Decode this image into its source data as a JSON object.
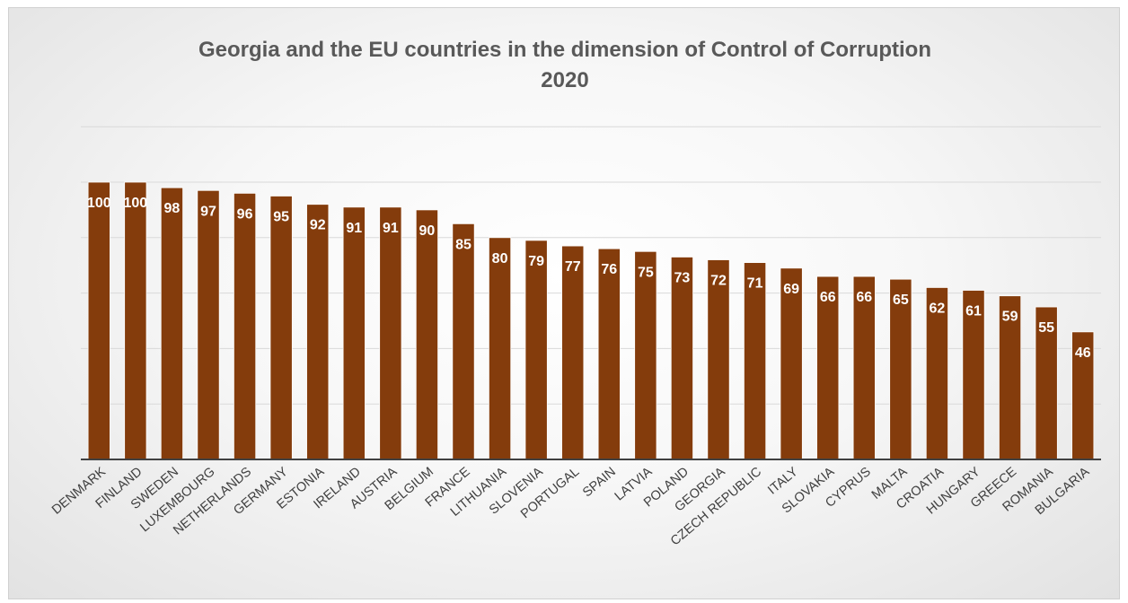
{
  "chart_data": {
    "type": "bar",
    "title": "Georgia and the EU countries in the dimension of Control of Corruption",
    "subtitle": "2020",
    "categories": [
      "DENMARK",
      "FINLAND",
      "SWEDEN",
      "LUXEMBOURG",
      "NETHERLANDS",
      "GERMANY",
      "ESTONIA",
      "IRELAND",
      "AUSTRIA",
      "BELGIUM",
      "FRANCE",
      "LITHUANIA",
      "SLOVENIA",
      "PORTUGAL",
      "SPAIN",
      "LATVIA",
      "POLAND",
      "GEORGIA",
      "CZECH REPUBLIC",
      "ITALY",
      "SLOVAKIA",
      "CYPRUS",
      "MALTA",
      "CROATIA",
      "HUNGARY",
      "GREECE",
      "ROMANIA",
      "BULGARIA"
    ],
    "values": [
      100,
      100,
      98,
      97,
      96,
      95,
      92,
      91,
      91,
      90,
      85,
      80,
      79,
      77,
      76,
      75,
      73,
      72,
      71,
      69,
      66,
      66,
      65,
      62,
      61,
      59,
      55,
      46
    ],
    "ylim": [
      0,
      100
    ],
    "grid": true,
    "legend": "none",
    "bar_color": "#843C0C",
    "label_color": "#FFFFFF",
    "xlabel": "",
    "ylabel": ""
  }
}
